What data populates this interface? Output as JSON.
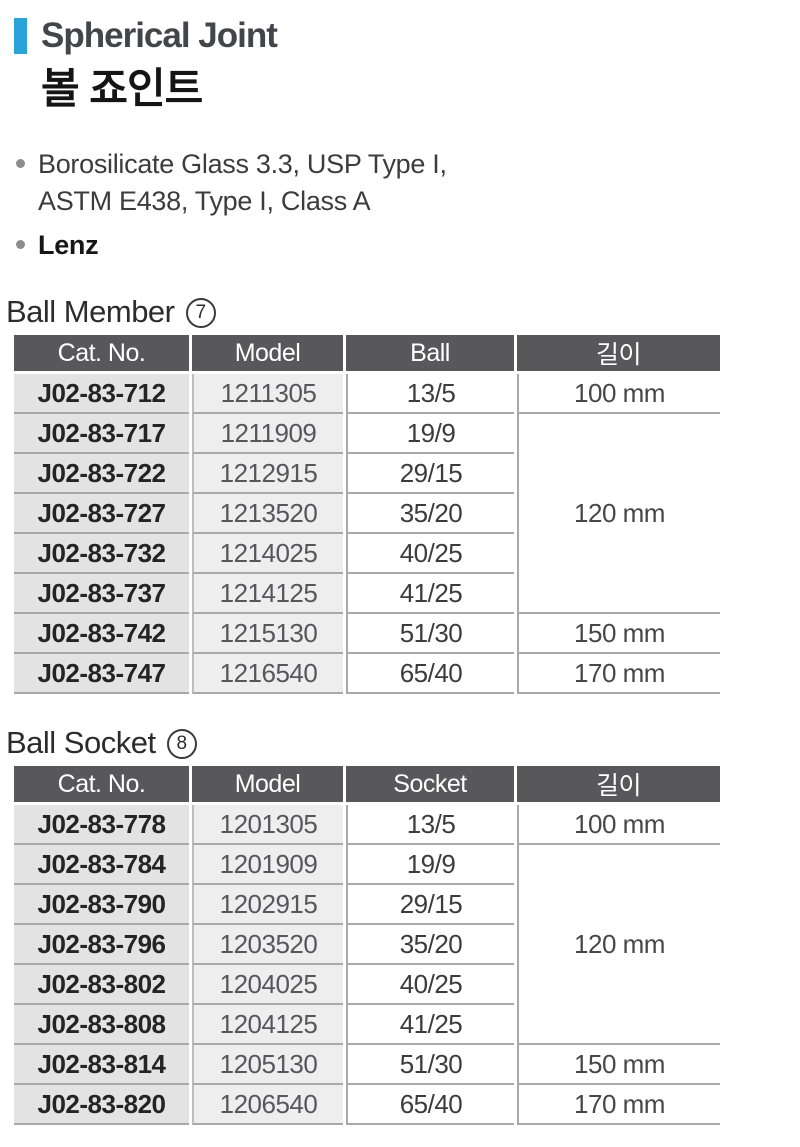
{
  "page": {
    "title_en": "Spherical Joint",
    "title_ko": "볼 죠인트",
    "bullets": [
      {
        "lines": [
          "Borosilicate Glass 3.3, USP Type I,",
          "ASTM E438, Type I, Class A"
        ]
      },
      {
        "lines": [
          "Lenz"
        ]
      }
    ]
  },
  "colors": {
    "accent_blue": "#2aa2da",
    "table_header_bg": "#58585a",
    "table_header_text": "#ffffff",
    "catno_col_bg": "#e3e3e3",
    "model_col_bg": "#eeeeee",
    "grid_border": "#a9a9a9"
  },
  "tables": [
    {
      "heading": "Ball Member",
      "badge": "7",
      "columns": [
        "Cat. No.",
        "Model",
        "Ball",
        "길이"
      ],
      "size_cell_name": "cell-ball",
      "rows": [
        [
          "J02-83-712",
          "1211305",
          "13/5",
          "100 mm"
        ],
        [
          "J02-83-717",
          "1211909",
          "19/9",
          {
            "text": "120 mm",
            "rowspan": 5
          }
        ],
        [
          "J02-83-722",
          "1212915",
          "29/15",
          null
        ],
        [
          "J02-83-727",
          "1213520",
          "35/20",
          null
        ],
        [
          "J02-83-732",
          "1214025",
          "40/25",
          null
        ],
        [
          "J02-83-737",
          "1214125",
          "41/25",
          null
        ],
        [
          "J02-83-742",
          "1215130",
          "51/30",
          "150 mm"
        ],
        [
          "J02-83-747",
          "1216540",
          "65/40",
          "170 mm"
        ]
      ]
    },
    {
      "heading": "Ball Socket",
      "badge": "8",
      "columns": [
        "Cat. No.",
        "Model",
        "Socket",
        "길이"
      ],
      "size_cell_name": "cell-socket",
      "rows": [
        [
          "J02-83-778",
          "1201305",
          "13/5",
          "100 mm"
        ],
        [
          "J02-83-784",
          "1201909",
          "19/9",
          {
            "text": "120 mm",
            "rowspan": 5
          }
        ],
        [
          "J02-83-790",
          "1202915",
          "29/15",
          null
        ],
        [
          "J02-83-796",
          "1203520",
          "35/20",
          null
        ],
        [
          "J02-83-802",
          "1204025",
          "40/25",
          null
        ],
        [
          "J02-83-808",
          "1204125",
          "41/25",
          null
        ],
        [
          "J02-83-814",
          "1205130",
          "51/30",
          "150 mm"
        ],
        [
          "J02-83-820",
          "1206540",
          "65/40",
          "170 mm"
        ]
      ]
    }
  ]
}
